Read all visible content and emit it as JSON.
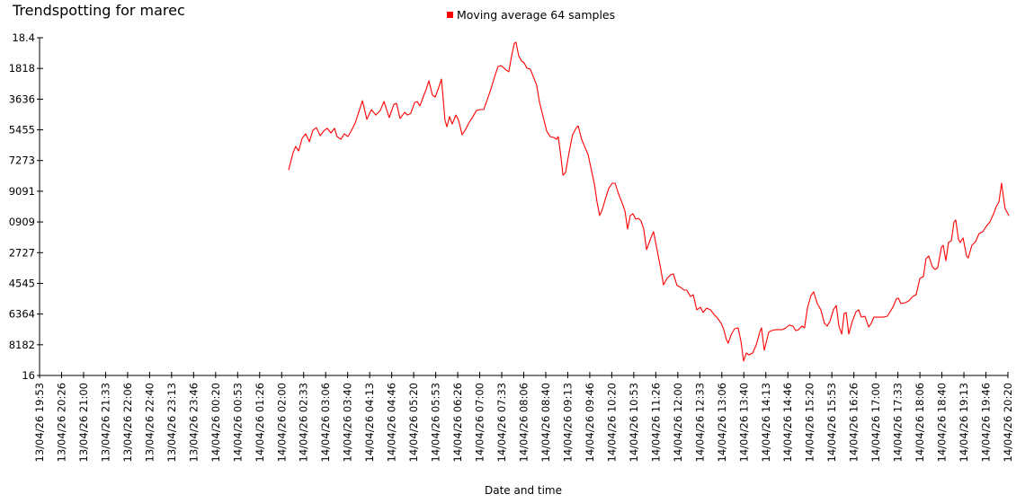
{
  "chart_data": {
    "type": "line",
    "title": "Trendspotting for marec",
    "xlabel": "Date and time",
    "grid": false,
    "legend_position": "top-center",
    "colors": {
      "series": "#ff0000",
      "axis": "#000000",
      "text": "#000000",
      "background": "#ffffff"
    },
    "legend": [
      {
        "label": "Moving average 64 samples",
        "color": "#ff0000"
      }
    ],
    "y_tick_labels": [
      "18.4",
      "1818",
      "3636",
      "5455",
      "7273",
      "9091",
      "0909",
      "2727",
      "4545",
      "6364",
      "8182",
      "16"
    ],
    "x_tick_labels": [
      "13/04/26 19:53",
      "13/04/26 20:26",
      "13/04/26 21:00",
      "13/04/26 21:33",
      "13/04/26 22:06",
      "13/04/26 22:40",
      "13/04/26 23:13",
      "13/04/26 23:46",
      "14/04/26 00:20",
      "14/04/26 00:53",
      "14/04/26 01:26",
      "14/04/26 02:00",
      "14/04/26 02:33",
      "14/04/26 03:06",
      "14/04/26 03:40",
      "14/04/26 04:13",
      "14/04/26 04:46",
      "14/04/26 05:20",
      "14/04/26 05:53",
      "14/04/26 06:26",
      "14/04/26 07:00",
      "14/04/26 07:33",
      "14/04/26 08:06",
      "14/04/26 08:40",
      "14/04/26 09:13",
      "14/04/26 09:46",
      "14/04/26 10:20",
      "14/04/26 10:53",
      "14/04/26 11:26",
      "14/04/26 12:00",
      "14/04/26 12:33",
      "14/04/26 13:06",
      "14/04/26 13:40",
      "14/04/26 14:13",
      "14/04/26 14:46",
      "14/04/26 15:20",
      "14/04/26 15:53",
      "14/04/26 16:26",
      "14/04/26 17:00",
      "14/04/26 17:33",
      "14/04/26 18:06",
      "14/04/26 18:40",
      "14/04/26 19:13",
      "14/04/26 19:46",
      "14/04/26 20:20"
    ],
    "points_unit": "x = x-axis tick index (0-44 over the time labels); y = y-axis tick intervals measured down from the top '18.4' tick (11 = bottom '16' tick)",
    "series": [
      {
        "name": "Moving average 64 samples",
        "color": "#ff0000",
        "points": [
          [
            11.32,
            4.3
          ],
          [
            11.52,
            3.74
          ],
          [
            11.64,
            3.54
          ],
          [
            11.77,
            3.69
          ],
          [
            11.93,
            3.28
          ],
          [
            12.09,
            3.13
          ],
          [
            12.26,
            3.39
          ],
          [
            12.42,
            3.01
          ],
          [
            12.58,
            2.93
          ],
          [
            12.75,
            3.19
          ],
          [
            12.91,
            3.04
          ],
          [
            13.07,
            2.95
          ],
          [
            13.24,
            3.1
          ],
          [
            13.4,
            2.95
          ],
          [
            13.52,
            3.22
          ],
          [
            13.69,
            3.31
          ],
          [
            13.85,
            3.13
          ],
          [
            14.01,
            3.22
          ],
          [
            14.18,
            3.01
          ],
          [
            14.34,
            2.78
          ],
          [
            14.5,
            2.43
          ],
          [
            14.67,
            2.05
          ],
          [
            14.87,
            2.66
          ],
          [
            15.08,
            2.34
          ],
          [
            15.28,
            2.52
          ],
          [
            15.48,
            2.37
          ],
          [
            15.65,
            2.08
          ],
          [
            15.89,
            2.6
          ],
          [
            16.1,
            2.17
          ],
          [
            16.22,
            2.14
          ],
          [
            16.38,
            2.63
          ],
          [
            16.59,
            2.43
          ],
          [
            16.71,
            2.52
          ],
          [
            16.87,
            2.46
          ],
          [
            17.04,
            2.11
          ],
          [
            17.16,
            2.08
          ],
          [
            17.28,
            2.22
          ],
          [
            17.4,
            1.99
          ],
          [
            17.57,
            1.67
          ],
          [
            17.69,
            1.4
          ],
          [
            17.85,
            1.87
          ],
          [
            17.98,
            1.93
          ],
          [
            18.1,
            1.7
          ],
          [
            18.26,
            1.35
          ],
          [
            18.42,
            2.69
          ],
          [
            18.51,
            2.9
          ],
          [
            18.63,
            2.57
          ],
          [
            18.75,
            2.81
          ],
          [
            18.92,
            2.52
          ],
          [
            19.04,
            2.69
          ],
          [
            19.2,
            3.16
          ],
          [
            19.36,
            2.98
          ],
          [
            19.53,
            2.75
          ],
          [
            19.69,
            2.57
          ],
          [
            19.85,
            2.37
          ],
          [
            20.02,
            2.34
          ],
          [
            20.18,
            2.34
          ],
          [
            20.34,
            2.02
          ],
          [
            20.51,
            1.67
          ],
          [
            20.67,
            1.29
          ],
          [
            20.83,
            0.94
          ],
          [
            20.96,
            0.91
          ],
          [
            21.08,
            0.97
          ],
          [
            21.2,
            1.05
          ],
          [
            21.32,
            1.11
          ],
          [
            21.45,
            0.59
          ],
          [
            21.57,
            0.18
          ],
          [
            21.65,
            0.15
          ],
          [
            21.77,
            0.59
          ],
          [
            21.9,
            0.76
          ],
          [
            22.02,
            0.82
          ],
          [
            22.14,
            0.99
          ],
          [
            22.3,
            1.02
          ],
          [
            22.43,
            1.26
          ],
          [
            22.59,
            1.55
          ],
          [
            22.71,
            2.08
          ],
          [
            22.88,
            2.57
          ],
          [
            23.04,
            3.04
          ],
          [
            23.2,
            3.22
          ],
          [
            23.37,
            3.25
          ],
          [
            23.49,
            3.31
          ],
          [
            23.57,
            3.22
          ],
          [
            23.69,
            3.89
          ],
          [
            23.78,
            4.48
          ],
          [
            23.9,
            4.39
          ],
          [
            24.06,
            3.74
          ],
          [
            24.22,
            3.16
          ],
          [
            24.39,
            2.93
          ],
          [
            24.47,
            2.87
          ],
          [
            24.63,
            3.31
          ],
          [
            24.8,
            3.6
          ],
          [
            24.92,
            3.8
          ],
          [
            25.08,
            4.33
          ],
          [
            25.21,
            4.77
          ],
          [
            25.33,
            5.35
          ],
          [
            25.45,
            5.79
          ],
          [
            25.57,
            5.59
          ],
          [
            25.7,
            5.27
          ],
          [
            25.86,
            4.91
          ],
          [
            26.02,
            4.74
          ],
          [
            26.15,
            4.74
          ],
          [
            26.31,
            5.09
          ],
          [
            26.47,
            5.38
          ],
          [
            26.6,
            5.65
          ],
          [
            26.72,
            6.23
          ],
          [
            26.84,
            5.79
          ],
          [
            26.96,
            5.73
          ],
          [
            27.09,
            5.91
          ],
          [
            27.21,
            5.88
          ],
          [
            27.33,
            5.97
          ],
          [
            27.45,
            6.23
          ],
          [
            27.58,
            6.9
          ],
          [
            27.7,
            6.67
          ],
          [
            27.82,
            6.44
          ],
          [
            27.9,
            6.32
          ],
          [
            28.07,
            6.96
          ],
          [
            28.23,
            7.55
          ],
          [
            28.35,
            8.05
          ],
          [
            28.51,
            7.84
          ],
          [
            28.68,
            7.72
          ],
          [
            28.8,
            7.69
          ],
          [
            28.96,
            8.07
          ],
          [
            29.13,
            8.13
          ],
          [
            29.29,
            8.22
          ],
          [
            29.41,
            8.22
          ],
          [
            29.58,
            8.43
          ],
          [
            29.7,
            8.37
          ],
          [
            29.86,
            8.86
          ],
          [
            30.03,
            8.78
          ],
          [
            30.15,
            8.95
          ],
          [
            30.31,
            8.81
          ],
          [
            30.48,
            8.86
          ],
          [
            30.64,
            9.01
          ],
          [
            30.8,
            9.13
          ],
          [
            30.97,
            9.3
          ],
          [
            31.09,
            9.51
          ],
          [
            31.21,
            9.83
          ],
          [
            31.29,
            9.95
          ],
          [
            31.42,
            9.68
          ],
          [
            31.58,
            9.48
          ],
          [
            31.74,
            9.45
          ],
          [
            31.87,
            9.89
          ],
          [
            31.99,
            10.53
          ],
          [
            32.11,
            10.27
          ],
          [
            32.23,
            10.33
          ],
          [
            32.4,
            10.27
          ],
          [
            32.56,
            10.01
          ],
          [
            32.72,
            9.6
          ],
          [
            32.8,
            9.45
          ],
          [
            32.93,
            10.18
          ],
          [
            33.13,
            9.6
          ],
          [
            33.25,
            9.54
          ],
          [
            33.42,
            9.51
          ],
          [
            33.58,
            9.51
          ],
          [
            33.74,
            9.51
          ],
          [
            33.91,
            9.45
          ],
          [
            34.07,
            9.36
          ],
          [
            34.23,
            9.39
          ],
          [
            34.36,
            9.54
          ],
          [
            34.48,
            9.51
          ],
          [
            34.64,
            9.39
          ],
          [
            34.76,
            9.45
          ],
          [
            34.89,
            8.81
          ],
          [
            35.05,
            8.4
          ],
          [
            35.17,
            8.28
          ],
          [
            35.34,
            8.66
          ],
          [
            35.5,
            8.86
          ],
          [
            35.66,
            9.3
          ],
          [
            35.79,
            9.39
          ],
          [
            35.91,
            9.24
          ],
          [
            36.07,
            8.86
          ],
          [
            36.2,
            8.72
          ],
          [
            36.32,
            9.39
          ],
          [
            36.45,
            9.65
          ],
          [
            36.56,
            8.98
          ],
          [
            36.65,
            8.95
          ],
          [
            36.77,
            9.65
          ],
          [
            36.93,
            9.24
          ],
          [
            37.1,
            8.92
          ],
          [
            37.22,
            8.86
          ],
          [
            37.34,
            9.1
          ],
          [
            37.5,
            9.07
          ],
          [
            37.67,
            9.42
          ],
          [
            37.79,
            9.3
          ],
          [
            37.91,
            9.1
          ],
          [
            38.12,
            9.1
          ],
          [
            38.32,
            9.1
          ],
          [
            38.52,
            9.07
          ],
          [
            38.77,
            8.78
          ],
          [
            38.93,
            8.51
          ],
          [
            39.02,
            8.48
          ],
          [
            39.14,
            8.66
          ],
          [
            39.34,
            8.63
          ],
          [
            39.5,
            8.57
          ],
          [
            39.67,
            8.43
          ],
          [
            39.83,
            8.37
          ],
          [
            40.0,
            7.84
          ],
          [
            40.16,
            7.78
          ],
          [
            40.28,
            7.2
          ],
          [
            40.4,
            7.11
          ],
          [
            40.57,
            7.46
          ],
          [
            40.69,
            7.55
          ],
          [
            40.81,
            7.49
          ],
          [
            40.98,
            6.82
          ],
          [
            41.06,
            6.76
          ],
          [
            41.18,
            7.26
          ],
          [
            41.3,
            6.67
          ],
          [
            41.43,
            6.61
          ],
          [
            41.55,
            6.0
          ],
          [
            41.63,
            5.94
          ],
          [
            41.75,
            6.55
          ],
          [
            41.83,
            6.67
          ],
          [
            41.96,
            6.52
          ],
          [
            42.12,
            7.11
          ],
          [
            42.2,
            7.17
          ],
          [
            42.36,
            6.76
          ],
          [
            42.53,
            6.64
          ],
          [
            42.69,
            6.38
          ],
          [
            42.85,
            6.32
          ],
          [
            43.02,
            6.14
          ],
          [
            43.18,
            6.0
          ],
          [
            43.35,
            5.73
          ],
          [
            43.47,
            5.5
          ],
          [
            43.59,
            5.35
          ],
          [
            43.71,
            4.74
          ],
          [
            43.87,
            5.56
          ],
          [
            44.04,
            5.79
          ]
        ]
      }
    ]
  }
}
